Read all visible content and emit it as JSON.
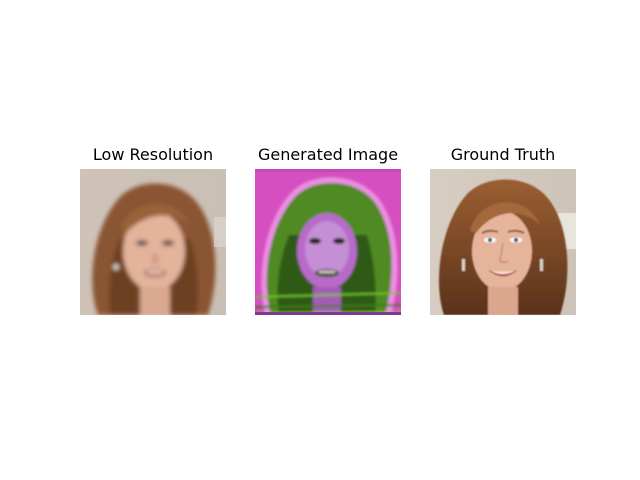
{
  "panels": [
    {
      "title": "Low Resolution"
    },
    {
      "title": "Generated Image"
    },
    {
      "title": "Ground Truth"
    }
  ],
  "colors": {
    "background": "#ffffff",
    "photo_backdrop": "#d4cabf",
    "hair": "#8a5430",
    "skin": "#e2b39a",
    "generated_backdrop": "#d64fc0",
    "generated_hair": "#4f8a22"
  }
}
